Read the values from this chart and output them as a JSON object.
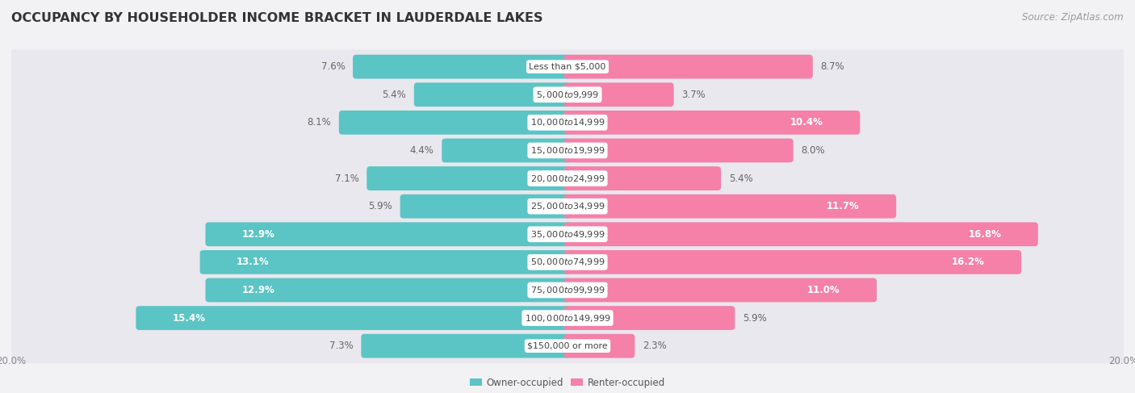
{
  "title": "OCCUPANCY BY HOUSEHOLDER INCOME BRACKET IN LAUDERDALE LAKES",
  "source": "Source: ZipAtlas.com",
  "categories": [
    "Less than $5,000",
    "$5,000 to $9,999",
    "$10,000 to $14,999",
    "$15,000 to $19,999",
    "$20,000 to $24,999",
    "$25,000 to $34,999",
    "$35,000 to $49,999",
    "$50,000 to $74,999",
    "$75,000 to $99,999",
    "$100,000 to $149,999",
    "$150,000 or more"
  ],
  "owner_values": [
    7.6,
    5.4,
    8.1,
    4.4,
    7.1,
    5.9,
    12.9,
    13.1,
    12.9,
    15.4,
    7.3
  ],
  "renter_values": [
    8.7,
    3.7,
    10.4,
    8.0,
    5.4,
    11.7,
    16.8,
    16.2,
    11.0,
    5.9,
    2.3
  ],
  "owner_color": "#5bc4c4",
  "renter_color": "#f580a8",
  "row_bg_color": "#e8e8ee",
  "background_color": "#f2f2f5",
  "max_value": 20.0,
  "title_fontsize": 11.5,
  "label_fontsize": 8.5,
  "cat_fontsize": 8.0,
  "axis_fontsize": 8.5,
  "source_fontsize": 8.5,
  "inside_threshold": 10.0
}
